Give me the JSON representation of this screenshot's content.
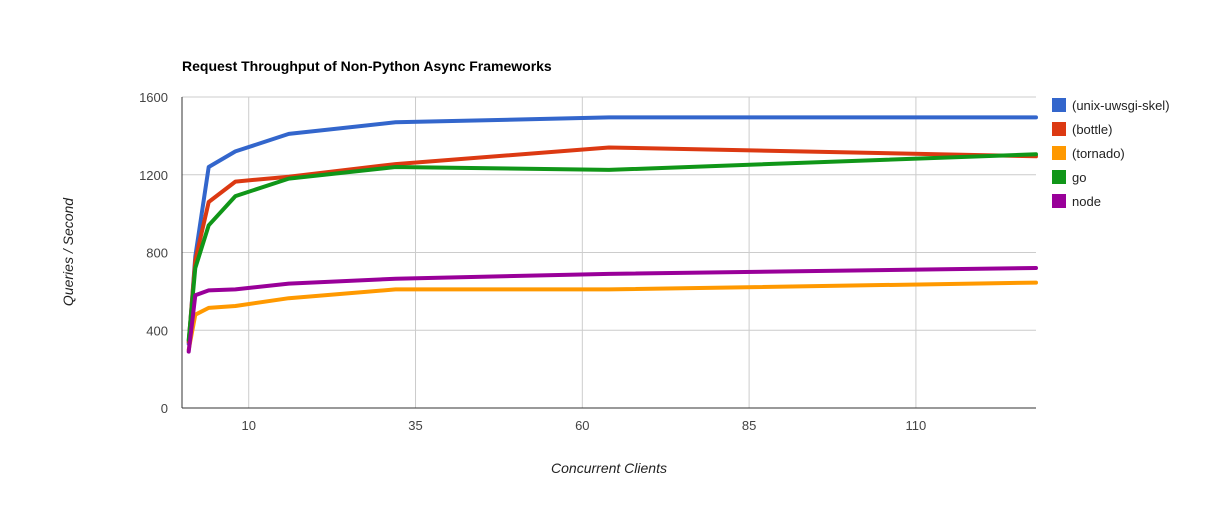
{
  "chart_data": {
    "type": "line",
    "title": "Request Throughput of Non-Python Async Frameworks",
    "xlabel": "Concurrent Clients",
    "ylabel": "Queries / Second",
    "xlim": [
      0,
      128
    ],
    "ylim": [
      0,
      1600
    ],
    "x_ticks": [
      10,
      35,
      60,
      85,
      110
    ],
    "y_ticks": [
      0,
      400,
      800,
      1200,
      1600
    ],
    "grid": true,
    "legend": "right",
    "series": [
      {
        "name": "(unix-uwsgi-skel)",
        "color": "#3366cc",
        "points": [
          [
            1,
            330
          ],
          [
            2,
            780
          ],
          [
            4,
            1240
          ],
          [
            8,
            1320
          ],
          [
            16,
            1410
          ],
          [
            32,
            1470
          ],
          [
            64,
            1495
          ],
          [
            128,
            1495
          ]
        ]
      },
      {
        "name": "(bottle)",
        "color": "#dc3912",
        "points": [
          [
            1,
            340
          ],
          [
            2,
            760
          ],
          [
            4,
            1060
          ],
          [
            8,
            1165
          ],
          [
            16,
            1190
          ],
          [
            32,
            1255
          ],
          [
            64,
            1340
          ],
          [
            128,
            1295
          ]
        ]
      },
      {
        "name": "(tornado)",
        "color": "#ff9900",
        "points": [
          [
            1,
            300
          ],
          [
            2,
            480
          ],
          [
            4,
            515
          ],
          [
            8,
            525
          ],
          [
            16,
            565
          ],
          [
            32,
            610
          ],
          [
            64,
            610
          ],
          [
            128,
            645
          ]
        ]
      },
      {
        "name": "go",
        "color": "#109618",
        "points": [
          [
            1,
            350
          ],
          [
            2,
            720
          ],
          [
            4,
            940
          ],
          [
            8,
            1090
          ],
          [
            16,
            1180
          ],
          [
            32,
            1240
          ],
          [
            64,
            1225
          ],
          [
            128,
            1305
          ]
        ]
      },
      {
        "name": "node",
        "color": "#990099",
        "points": [
          [
            1,
            290
          ],
          [
            2,
            580
          ],
          [
            4,
            605
          ],
          [
            8,
            610
          ],
          [
            16,
            640
          ],
          [
            32,
            665
          ],
          [
            64,
            690
          ],
          [
            128,
            720
          ]
        ]
      }
    ]
  }
}
